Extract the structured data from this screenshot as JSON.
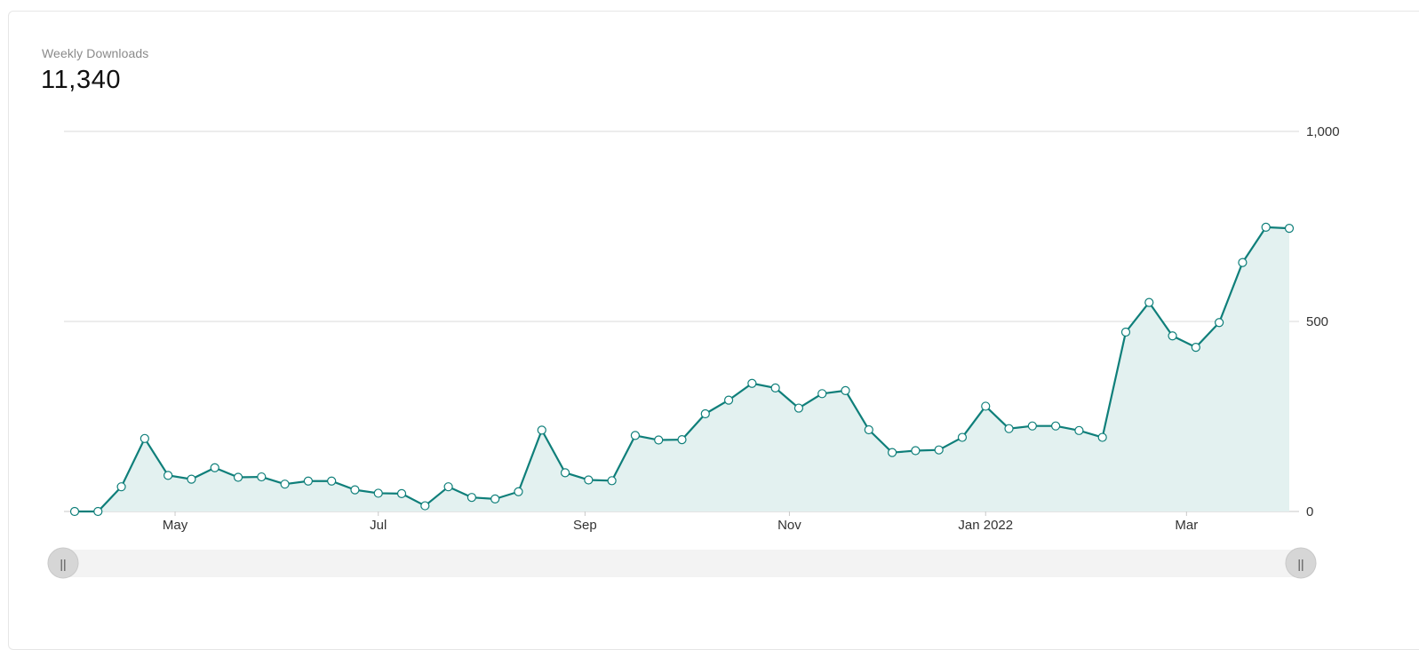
{
  "header": {
    "label": "Weekly Downloads",
    "value": "11,340"
  },
  "colors": {
    "line": "#0f7f7a",
    "area": "#e3f1f0",
    "gridline": "#d9d9d9",
    "point_fill": "#ffffff",
    "scrollbar_track": "#f3f3f3",
    "handle": "#d6d6d6"
  },
  "chart_data": {
    "type": "area",
    "ylim": [
      0,
      1000
    ],
    "y_ticks": [
      "1,000",
      "500",
      "0"
    ],
    "y_tick_values": [
      1000,
      500,
      0
    ],
    "x_ticks": [
      {
        "label": "May",
        "index": 4.3
      },
      {
        "label": "Jul",
        "index": 13.0
      },
      {
        "label": "Sep",
        "index": 21.85
      },
      {
        "label": "Nov",
        "index": 30.6
      },
      {
        "label": "Jan 2022",
        "index": 39.0
      },
      {
        "label": "Mar",
        "index": 47.6
      }
    ],
    "series": [
      {
        "values": [
          0,
          0,
          65,
          192,
          95,
          85,
          115,
          90,
          91,
          72,
          80,
          80,
          57,
          48,
          47,
          15,
          65,
          37,
          33,
          52,
          214,
          102,
          83,
          81,
          200,
          188,
          189,
          257,
          293,
          337,
          325,
          272,
          310,
          318,
          215,
          155,
          160,
          162,
          195,
          277,
          218,
          225,
          225,
          213,
          195,
          472,
          550,
          462,
          432,
          497,
          655,
          748,
          745
        ]
      }
    ]
  },
  "scrollbar": {
    "left_handle_glyph": "||",
    "right_handle_glyph": "||"
  }
}
